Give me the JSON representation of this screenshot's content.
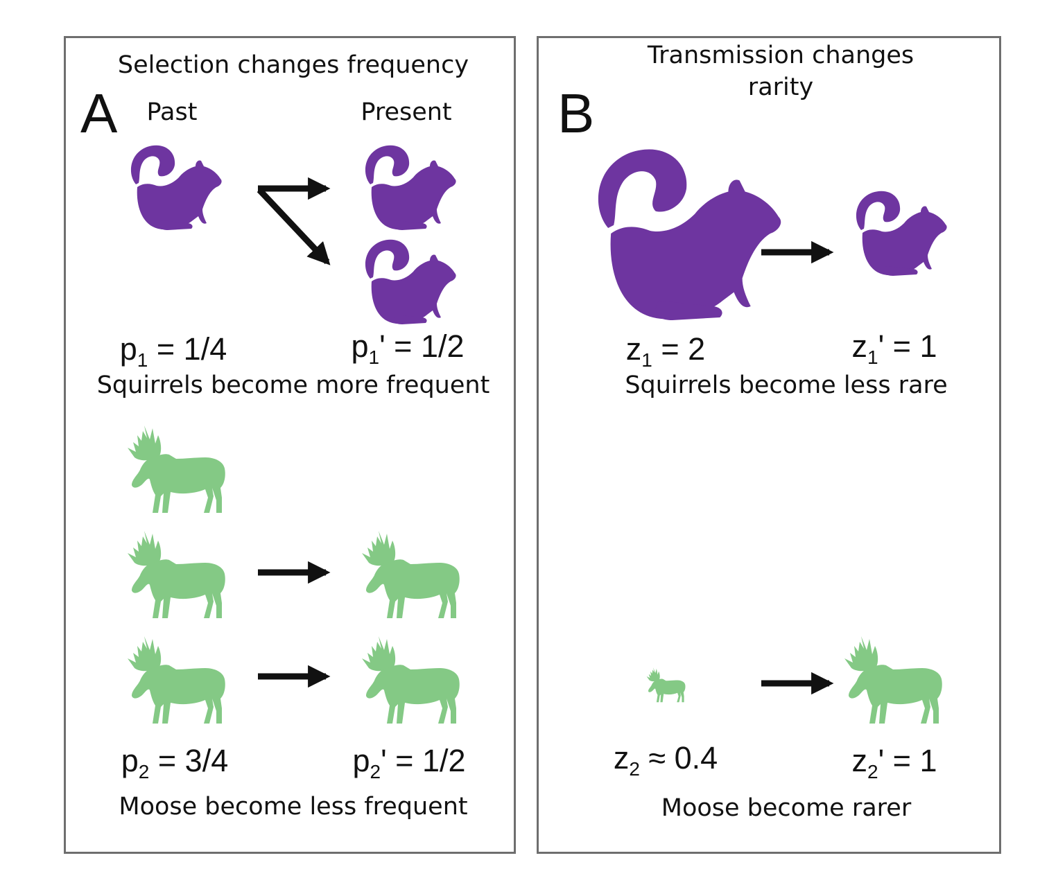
{
  "colors": {
    "squirrel": "#6e35a0",
    "moose": "#84c985",
    "arrow": "#111111",
    "border": "#6e6e6e"
  },
  "icons": {
    "squirrel": "squirrel-silhouette",
    "moose": "moose-silhouette"
  },
  "panel_a": {
    "title": "Selection changes frequency",
    "letter": "A",
    "col_past": "Past",
    "col_present": "Present",
    "squirrels": {
      "p_past": {
        "var": "p",
        "sub": "1",
        "rest": " = 1/4"
      },
      "p_present": {
        "var": "p",
        "sub": "1",
        "rest": "' = 1/2"
      },
      "caption": "Squirrels become more frequent",
      "past_count": 1,
      "present_count": 2
    },
    "moose": {
      "p_past": {
        "var": "p",
        "sub": "2",
        "rest": " = 3/4"
      },
      "p_present": {
        "var": "p",
        "sub": "2",
        "rest": "' = 1/2"
      },
      "caption": "Moose become less frequent",
      "past_count": 3,
      "present_count": 2
    }
  },
  "panel_b": {
    "title_line1": "Transmission changes",
    "title_line2": "rarity",
    "letter": "B",
    "squirrels": {
      "z_past": {
        "var": "z",
        "sub": "1",
        "rest": " = 2"
      },
      "z_present": {
        "var": "z",
        "sub": "1",
        "rest": "' = 1"
      },
      "caption": "Squirrels become less rare"
    },
    "moose": {
      "z_past": {
        "var": "z",
        "sub": "2",
        "rest": " ≈ 0.4"
      },
      "z_present": {
        "var": "z",
        "sub": "2",
        "rest": "' = 1"
      },
      "caption": "Moose become rarer"
    }
  }
}
